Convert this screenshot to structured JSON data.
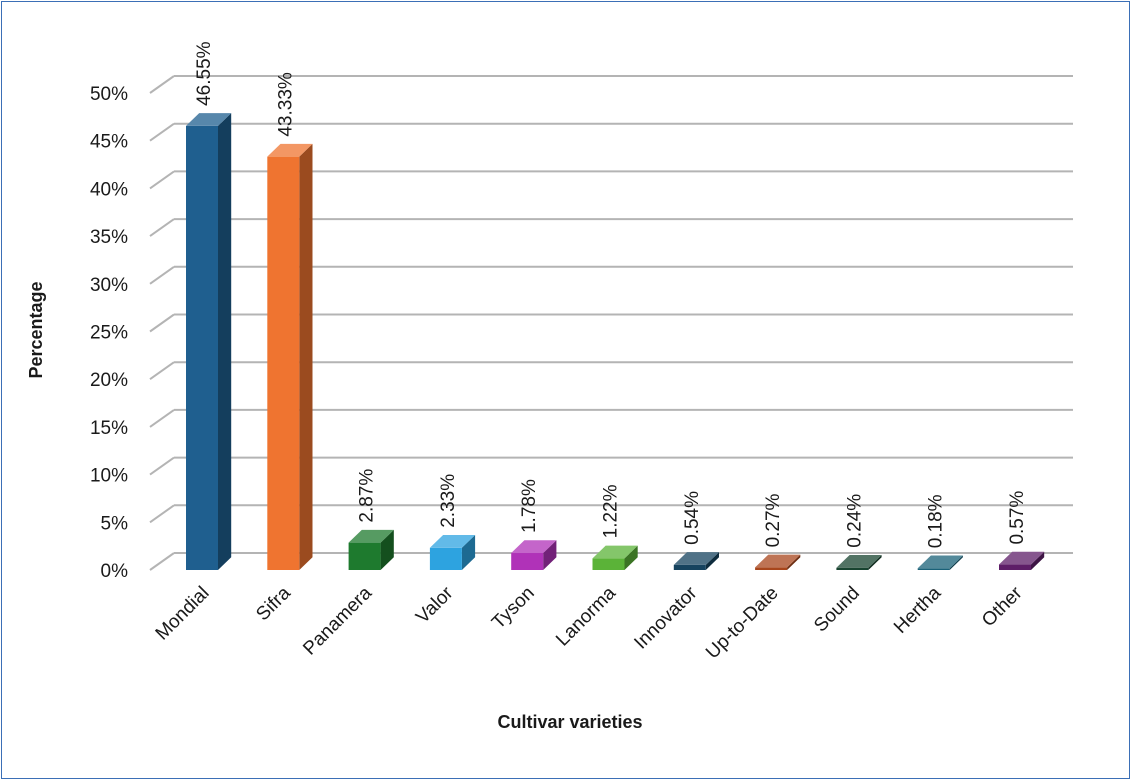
{
  "chart_data": {
    "type": "bar",
    "title": "",
    "xlabel": "Cultivar varieties",
    "ylabel": "Percentage",
    "ylim": [
      0,
      50
    ],
    "y_ticks": [
      "0%",
      "5%",
      "10%",
      "15%",
      "20%",
      "25%",
      "30%",
      "35%",
      "40%",
      "45%",
      "50%"
    ],
    "grid": true,
    "legend": "none",
    "categories": [
      "Mondial",
      "Sifra",
      "Panamera",
      "Valor",
      "Tyson",
      "Lanorma",
      "Innovator",
      "Up-to-Date",
      "Sound",
      "Hertha",
      "Other"
    ],
    "values": [
      46.55,
      43.33,
      2.87,
      2.33,
      1.78,
      1.22,
      0.54,
      0.27,
      0.24,
      0.18,
      0.57
    ],
    "data_labels": [
      "46.55%",
      "43.33%",
      "2.87%",
      "2.33%",
      "1.78%",
      "1.22%",
      "0.54%",
      "0.27%",
      "0.24%",
      "0.18%",
      "0.57%"
    ],
    "colors": [
      "#1f5f8f",
      "#ef7430",
      "#1e7a2e",
      "#2da3e0",
      "#b032b8",
      "#5bb338",
      "#16435f",
      "#a8461c",
      "#184430",
      "#1a6178",
      "#5e1e68"
    ]
  }
}
